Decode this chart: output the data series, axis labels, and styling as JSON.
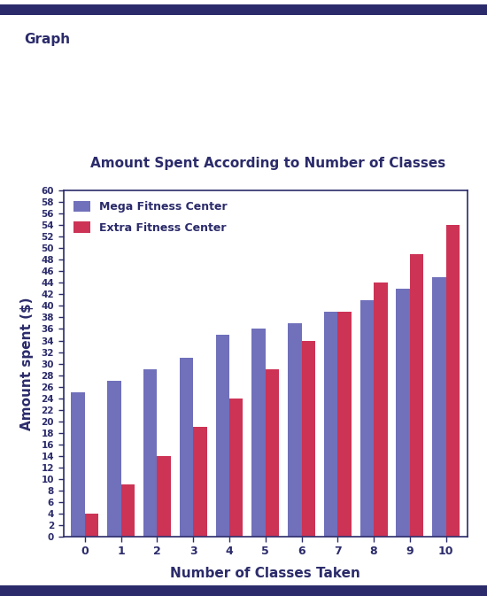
{
  "title": "Amount Spent According to Number of Classes",
  "xlabel": "Number of Classes Taken",
  "ylabel": "Amount spent ($)",
  "graph_label": "Graph",
  "categories": [
    0,
    1,
    2,
    3,
    4,
    5,
    6,
    7,
    8,
    9,
    10
  ],
  "mega_values": [
    25,
    27,
    29,
    31,
    35,
    36,
    37,
    39,
    41,
    43,
    45
  ],
  "extra_values": [
    4,
    9,
    14,
    19,
    24,
    29,
    34,
    39,
    44,
    49,
    54
  ],
  "mega_color": "#7070BB",
  "extra_color": "#CC3355",
  "mega_label": "Mega Fitness Center",
  "extra_label": "Extra Fitness Center",
  "ylim": [
    0,
    60
  ],
  "yticks": [
    0,
    2,
    4,
    6,
    8,
    10,
    12,
    14,
    16,
    18,
    20,
    22,
    24,
    26,
    28,
    30,
    32,
    34,
    36,
    38,
    40,
    42,
    44,
    46,
    48,
    50,
    52,
    54,
    56,
    58,
    60
  ],
  "border_color": "#2B2B6B",
  "title_color": "#2B2B6B",
  "label_color": "#2B2B6B",
  "graph_label_color": "#2B2B6B",
  "tick_color": "#2B2B6B",
  "background_color": "#FFFFFF",
  "bar_width": 0.38,
  "header_bar_color": "#2B2B6B",
  "header_bar_height": 0.018
}
